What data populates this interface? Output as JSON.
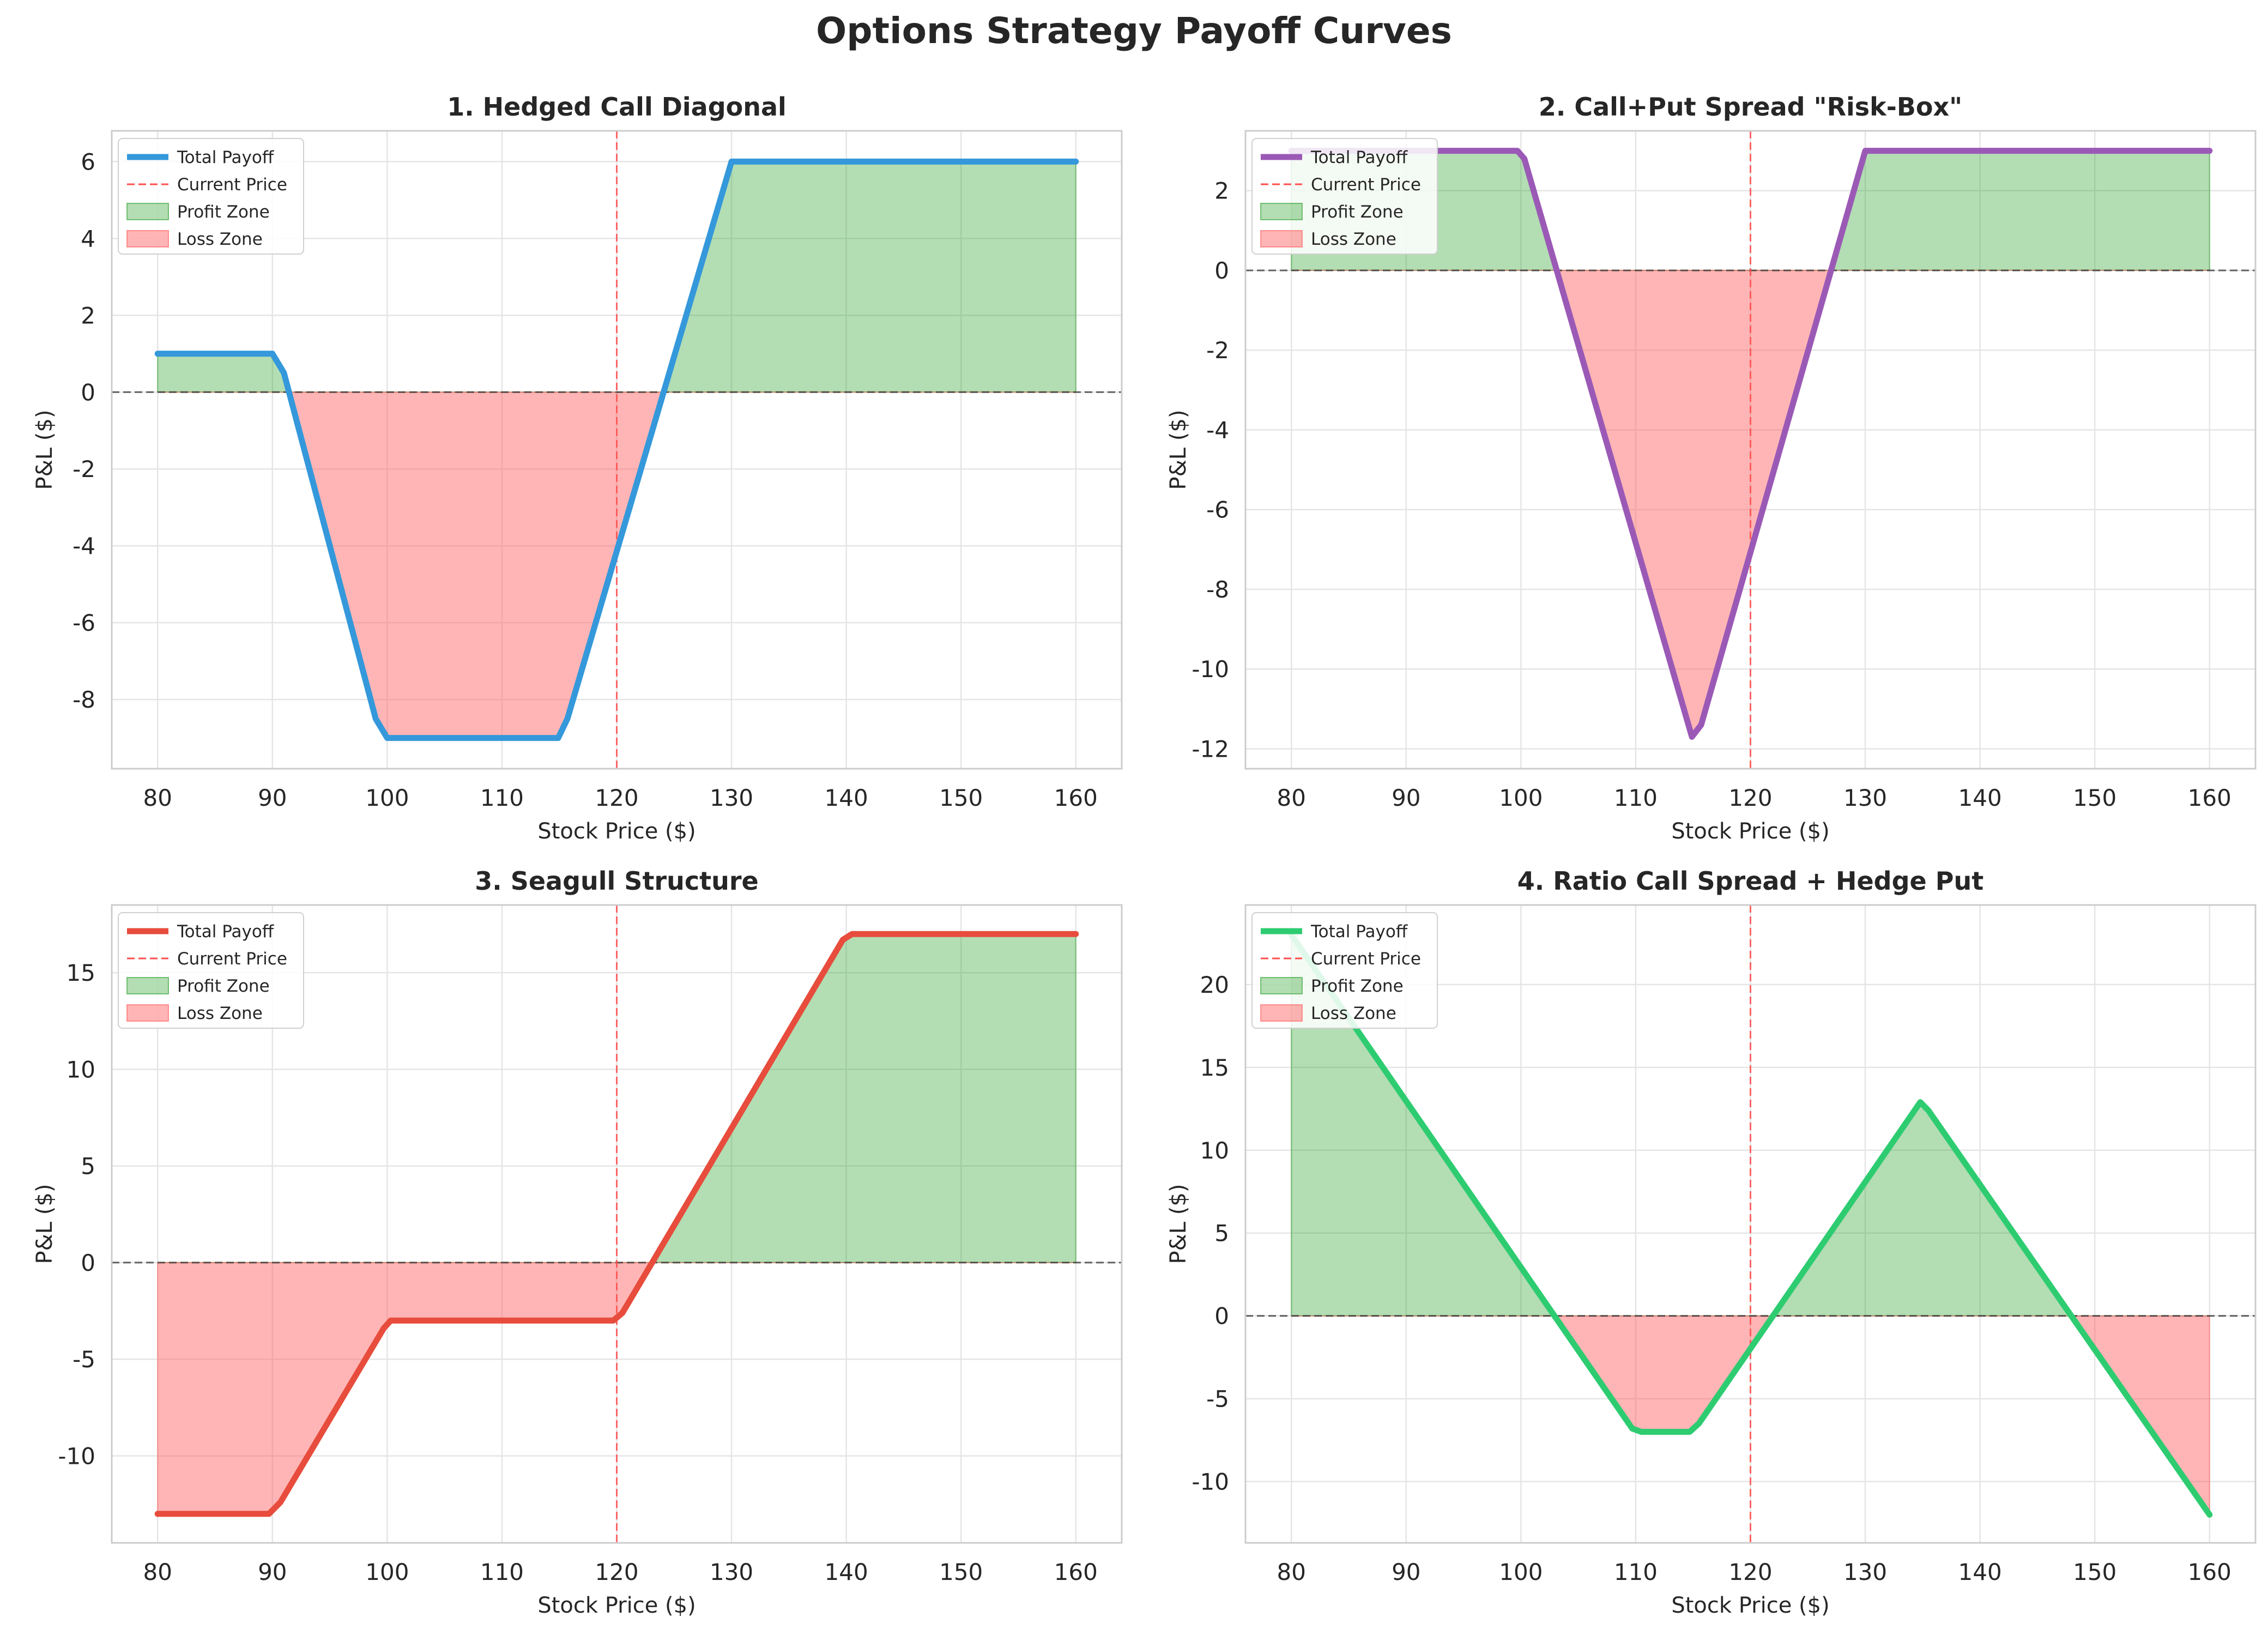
{
  "suptitle": "Options Strategy Payoff Curves",
  "colors": {
    "profit": "#2ca02c",
    "loss": "#ff5c5c",
    "current_price": "#ff4d4d",
    "zero_line": "#333333",
    "grid": "#e5e5e5",
    "frame": "#cccccc"
  },
  "legend_labels": {
    "total": "Total Payoff",
    "current": "Current Price",
    "profit": "Profit Zone",
    "loss": "Loss Zone"
  },
  "chart_data": [
    {
      "type": "line",
      "title": "1. Hedged Call Diagonal",
      "xlabel": "Stock Price ($)",
      "ylabel": "P&L ($)",
      "color": "#3498db",
      "xlim": [
        76,
        164
      ],
      "ylim": [
        -9.8,
        6.8
      ],
      "xticks": [
        80,
        90,
        100,
        110,
        120,
        130,
        140,
        150,
        160
      ],
      "yticks": [
        -8,
        -6,
        -4,
        -2,
        0,
        2,
        4,
        6
      ],
      "current_price": 120,
      "legend_position": "upper left",
      "grid": true,
      "x": [
        80,
        90,
        91,
        99,
        100,
        114.9,
        115.7,
        130,
        160
      ],
      "y": [
        1,
        1,
        0.5,
        -8.5,
        -9,
        -9,
        -8.5,
        6,
        6
      ]
    },
    {
      "type": "line",
      "title": "2. Call+Put Spread \"Risk-Box\"",
      "xlabel": "Stock Price ($)",
      "ylabel": "P&L ($)",
      "color": "#9b59b6",
      "xlim": [
        76,
        164
      ],
      "ylim": [
        -12.5,
        3.5
      ],
      "xticks": [
        80,
        90,
        100,
        110,
        120,
        130,
        140,
        150,
        160
      ],
      "yticks": [
        -12,
        -10,
        -8,
        -6,
        -4,
        -2,
        0,
        2
      ],
      "current_price": 120,
      "legend_position": "upper left",
      "grid": true,
      "x": [
        80,
        99.7,
        100.3,
        114.9,
        115.7,
        130,
        160
      ],
      "y": [
        3,
        3,
        2.8,
        -11.7,
        -11.4,
        3,
        3
      ]
    },
    {
      "type": "line",
      "title": "3. Seagull Structure",
      "xlabel": "Stock Price ($)",
      "ylabel": "P&L ($)",
      "color": "#e74c3c",
      "xlim": [
        76,
        164
      ],
      "ylim": [
        -14.5,
        18.5
      ],
      "xticks": [
        80,
        90,
        100,
        110,
        120,
        130,
        140,
        150,
        160
      ],
      "yticks": [
        -10,
        -5,
        0,
        5,
        10,
        15
      ],
      "current_price": 120,
      "legend_position": "upper left",
      "grid": true,
      "x": [
        80,
        89.7,
        90.7,
        99.7,
        100.3,
        119.7,
        120.5,
        139.7,
        140.5,
        160
      ],
      "y": [
        -13,
        -13,
        -12.4,
        -3.4,
        -3,
        -3,
        -2.6,
        16.7,
        17,
        17
      ]
    },
    {
      "type": "line",
      "title": "4. Ratio Call Spread + Hedge Put",
      "xlabel": "Stock Price ($)",
      "ylabel": "P&L ($)",
      "color": "#2ecc71",
      "xlim": [
        76,
        164
      ],
      "ylim": [
        -13.7,
        24.8
      ],
      "xticks": [
        80,
        90,
        100,
        110,
        120,
        130,
        140,
        150,
        160
      ],
      "yticks": [
        -10,
        -5,
        0,
        5,
        10,
        15,
        20
      ],
      "current_price": 120,
      "legend_position": "upper left",
      "grid": true,
      "x": [
        80,
        109.7,
        110.5,
        114.7,
        115.5,
        134.8,
        135.5,
        160
      ],
      "y": [
        23,
        -6.8,
        -7,
        -7,
        -6.5,
        12.9,
        12.4,
        -12
      ]
    }
  ]
}
